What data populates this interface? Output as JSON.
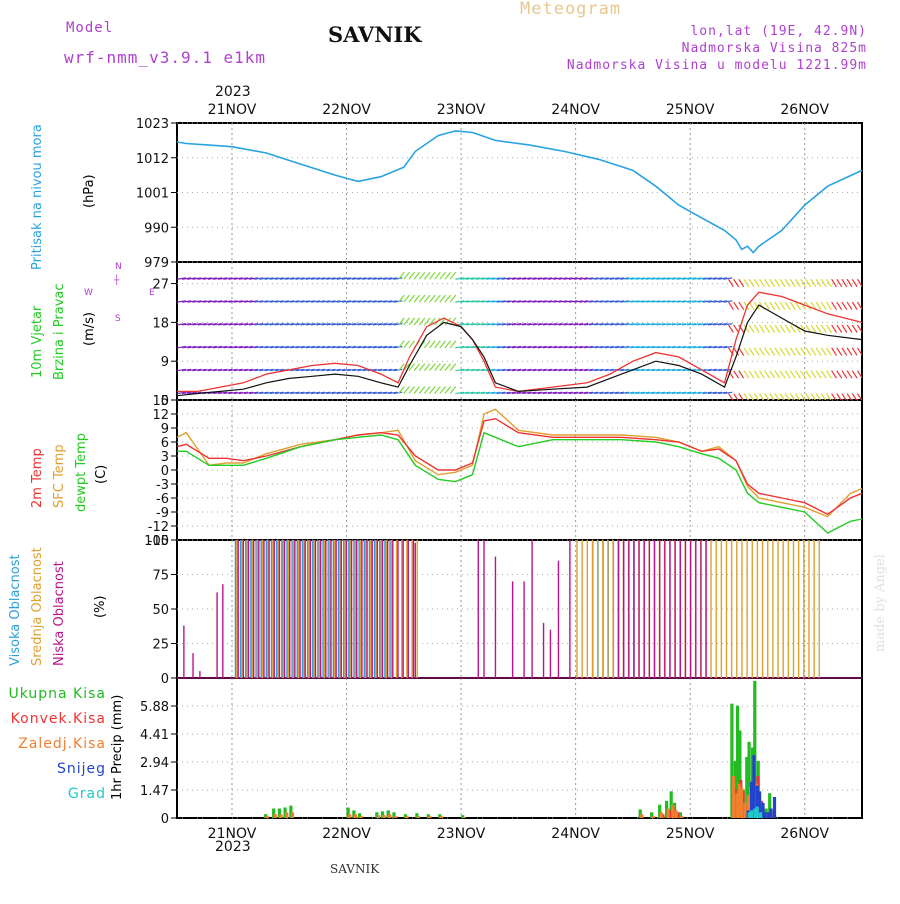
{
  "header": {
    "model_label": "Model",
    "model_name": "wrf-nmm_v3.9.1 e1km",
    "station": "SAVNIK",
    "meteogram_label": "Meteogram",
    "lonlat": "lon,lat (19E, 42.9N)",
    "altitude": "Nadmorska Visina 825m",
    "model_altitude": "Nadmorska Visina u modelu 1221.99m",
    "year_top": "2023",
    "year_bottom": "2023",
    "footer_station": "SAVNIK",
    "watermark": "made by Angel"
  },
  "colors": {
    "pressure": "#29a3e0",
    "temp2m": "#ee3333",
    "sfc": "#e0a030",
    "dew": "#22cc22",
    "high_cloud": "#2aa0d8",
    "mid_cloud": "#e0a030",
    "low_cloud": "#bb1488",
    "total": "#22bb22",
    "conv": "#ee3333",
    "strat": "#f08030",
    "snow": "#2244cc",
    "hail": "#20c8c8"
  },
  "chart_data": [
    {
      "type": "line",
      "panel": "pressure",
      "ylabel": "(hPa)",
      "side_labels": [
        "Pritisak na nivou mora"
      ],
      "ylim": [
        979,
        1023
      ],
      "yticks": [
        "1023",
        "1012",
        "1001",
        "990",
        "979"
      ],
      "x_days": [
        "21NOV",
        "22NOV",
        "23NOV",
        "24NOV",
        "25NOV",
        "26NOV"
      ],
      "x": [
        20.52,
        20.6,
        20.8,
        21.0,
        21.3,
        21.6,
        21.9,
        22.1,
        22.3,
        22.4,
        22.5,
        22.6,
        22.8,
        22.95,
        23.1,
        23.3,
        23.6,
        23.9,
        24.2,
        24.5,
        24.7,
        24.9,
        25.1,
        25.3,
        25.4,
        25.45,
        25.5,
        25.55,
        25.6,
        25.8,
        26.0,
        26.2,
        26.5
      ],
      "series": [
        {
          "values": [
            1017,
            1016.5,
            1016,
            1015.5,
            1013.5,
            1010,
            1006.5,
            1004.5,
            1006,
            1007.5,
            1009,
            1014,
            1019,
            1020.5,
            1020,
            1017.5,
            1016,
            1014,
            1011.5,
            1008,
            1003,
            997,
            993,
            989,
            986,
            983,
            984,
            982,
            984,
            989,
            997,
            1003,
            1008
          ]
        }
      ]
    },
    {
      "type": "line",
      "panel": "wind",
      "ylabel": "(m/s)",
      "side_labels": [
        "10m Vjetar",
        "Brzina i Pravac"
      ],
      "compass": [
        "N",
        "E",
        "S",
        "W"
      ],
      "ylim": [
        0,
        32
      ],
      "yticks": [
        "27",
        "18",
        "9",
        "0"
      ],
      "x": [
        20.52,
        20.7,
        20.9,
        21.1,
        21.3,
        21.5,
        21.7,
        21.9,
        22.1,
        22.3,
        22.45,
        22.55,
        22.7,
        22.85,
        23.0,
        23.1,
        23.2,
        23.3,
        23.5,
        23.8,
        24.1,
        24.3,
        24.5,
        24.7,
        24.9,
        25.1,
        25.3,
        25.4,
        25.5,
        25.6,
        25.8,
        26.0,
        26.2,
        26.5
      ],
      "series": [
        {
          "name": "speed",
          "values": [
            1,
            1.5,
            2,
            2.5,
            4,
            5,
            5.5,
            6,
            5.5,
            4,
            3,
            8,
            15,
            18,
            17,
            14,
            10,
            4,
            2,
            2.5,
            3,
            5,
            7,
            9,
            8,
            6,
            3,
            10,
            18,
            22,
            19,
            16,
            15,
            14
          ]
        },
        {
          "name": "gust",
          "values": [
            2,
            2,
            3,
            4,
            6,
            7,
            8,
            8.5,
            8,
            6,
            4,
            10,
            17,
            19,
            17,
            14,
            9,
            3,
            2,
            3,
            4,
            6,
            9,
            11,
            10,
            7,
            4,
            14,
            22,
            25,
            24,
            22,
            20,
            18
          ]
        }
      ]
    },
    {
      "type": "line",
      "panel": "temperature",
      "ylabel": "(C)",
      "side_labels": [
        "2m Temp",
        "SFC Temp",
        "dewpt Temp"
      ],
      "ylim": [
        -15,
        15
      ],
      "yticks": [
        "15",
        "12",
        "9",
        "6",
        "3",
        "0",
        "-3",
        "-6",
        "-9",
        "-12",
        "-15"
      ],
      "x": [
        20.52,
        20.6,
        20.8,
        20.95,
        21.1,
        21.3,
        21.6,
        21.9,
        22.1,
        22.3,
        22.45,
        22.6,
        22.8,
        22.95,
        23.1,
        23.2,
        23.3,
        23.5,
        23.8,
        24.1,
        24.4,
        24.7,
        24.9,
        25.1,
        25.25,
        25.4,
        25.5,
        25.6,
        25.8,
        26.0,
        26.2,
        26.4,
        26.5
      ],
      "series": [
        {
          "name": "2m Temp",
          "values": [
            5,
            5.5,
            2.5,
            2.5,
            2,
            3,
            5,
            6.5,
            7.5,
            8,
            7.5,
            3,
            0,
            0,
            1.5,
            10.5,
            11,
            8,
            7,
            7,
            7,
            6.5,
            6,
            4,
            4.5,
            2,
            -3,
            -5,
            -6,
            -7,
            -9.5,
            -6,
            -5
          ]
        },
        {
          "name": "SFC Temp",
          "values": [
            7,
            8,
            1,
            1.5,
            1.5,
            3.5,
            5.5,
            6.5,
            7.5,
            8,
            8.5,
            2,
            -1,
            -0.5,
            1,
            12,
            13,
            8.5,
            7.5,
            7.5,
            7.5,
            7,
            6,
            4,
            5,
            2,
            -3.5,
            -6,
            -7,
            -8,
            -10,
            -5,
            -4
          ]
        },
        {
          "name": "dewpt Temp",
          "values": [
            4,
            4,
            1,
            1,
            1,
            2.5,
            5,
            6.5,
            7,
            7.5,
            6.5,
            1,
            -2,
            -2.5,
            -1,
            8,
            7,
            5,
            6.5,
            6.5,
            6.5,
            6,
            5,
            3.5,
            2.5,
            0,
            -5,
            -7,
            -8,
            -9,
            -13.5,
            -11,
            -10.5
          ]
        }
      ]
    },
    {
      "type": "bar",
      "panel": "clouds",
      "ylabel": "(%)",
      "side_labels": [
        "Visoka Oblacnost",
        "Srednja Oblacnost",
        "Niska Oblacnost"
      ],
      "ylim": [
        0,
        100
      ],
      "yticks": [
        "100",
        "75",
        "50",
        "25",
        "0"
      ],
      "series": [
        {
          "name": "Visoka Oblacnost",
          "ranges": [
            [
              21.03,
              22.42,
              100
            ],
            [
              24.15,
              24.55,
              100
            ]
          ]
        },
        {
          "name": "Srednja Oblacnost",
          "ranges": [
            [
              21.03,
              22.65,
              100
            ],
            [
              24.0,
              26.15,
              100
            ]
          ]
        },
        {
          "name": "Niska Oblacnost",
          "ranges": [
            [
              21.03,
              22.6,
              100
            ],
            [
              24.35,
              25.15,
              100
            ]
          ]
        },
        {
          "name": "Niska Oblacnost sparse",
          "x": [
            20.58,
            20.66,
            20.72,
            20.87,
            20.92,
            22.6,
            23.15,
            23.2,
            23.3,
            23.45,
            23.55,
            23.62,
            23.72,
            23.78,
            23.85,
            23.95
          ],
          "values": [
            38,
            18,
            5,
            62,
            68,
            98,
            100,
            100,
            88,
            70,
            70,
            100,
            40,
            35,
            85,
            100
          ]
        }
      ]
    },
    {
      "type": "bar",
      "panel": "precipitation",
      "ylabel": "1hr Precip (mm)",
      "side_labels": [
        "Ukupna Kisa",
        "Konvek.Kisa",
        "Zaledj.Kisa",
        "Snijeg",
        "Grad"
      ],
      "ylim": [
        0,
        7.35
      ],
      "yticks": [
        "5.88",
        "4.41",
        "2.94",
        "1.47",
        "0"
      ],
      "x": [
        21.28,
        21.35,
        21.4,
        21.45,
        21.5,
        22.0,
        22.05,
        22.1,
        22.25,
        22.3,
        22.35,
        22.4,
        22.5,
        22.6,
        22.7,
        22.8,
        23.0,
        24.55,
        24.65,
        24.72,
        24.78,
        24.82,
        24.85,
        24.9,
        25.35,
        25.38,
        25.4,
        25.42,
        25.45,
        25.48,
        25.5,
        25.53,
        25.55,
        25.58,
        25.6,
        25.63,
        25.65,
        25.68
      ],
      "series": [
        {
          "name": "Ukupna Kisa",
          "values": [
            0.2,
            0.5,
            0.5,
            0.55,
            0.65,
            0.55,
            0.4,
            0.25,
            0.3,
            0.35,
            0.4,
            0.3,
            0.2,
            0.25,
            0.2,
            0.2,
            0.15,
            0.45,
            0.3,
            0.7,
            0.9,
            1.4,
            0.8,
            0.3,
            6.0,
            3.0,
            5.9,
            4.6,
            1.5,
            3.2,
            4.0,
            3.7,
            7.2,
            3.0,
            0.8,
            0.4,
            0.5,
            1.3
          ]
        },
        {
          "name": "Konvek.Kisa",
          "values": [
            0,
            0,
            0,
            0,
            0,
            0,
            0,
            0,
            0,
            0,
            0,
            0,
            0,
            0,
            0,
            0,
            0,
            0,
            0,
            0.2,
            0.4,
            0.5,
            0.3,
            0,
            1.5,
            1.0,
            2.0,
            1.4,
            0.6,
            1.2,
            1.5,
            1.3,
            2.2,
            0.9,
            0.2,
            0,
            0,
            0
          ]
        },
        {
          "name": "Zaledj.Kisa",
          "values": [
            0.1,
            0.2,
            0.2,
            0.3,
            0.3,
            0.2,
            0.2,
            0.1,
            0.15,
            0.15,
            0.2,
            0.1,
            0.1,
            0.1,
            0.1,
            0.1,
            0.05,
            0.2,
            0.1,
            0.3,
            0.5,
            0.7,
            0.4,
            0.1,
            2.2,
            1.3,
            1.8,
            1.6,
            0.8,
            1.2,
            1.6,
            1.4,
            1.8,
            1.0,
            0.3,
            0.2,
            0.2,
            0.4
          ]
        },
        {
          "name": "Snijeg",
          "values": [
            0,
            0,
            0,
            0,
            0,
            0,
            0,
            0,
            0,
            0,
            0,
            0,
            0,
            0,
            0,
            0,
            0,
            0,
            0,
            0,
            0,
            0,
            0,
            0,
            0,
            0,
            0,
            0,
            0.4,
            1.9,
            3.3,
            1.7,
            1.4,
            0.8,
            0.3,
            0.3,
            0.5,
            1.1
          ]
        },
        {
          "name": "Grad",
          "values": [
            0,
            0,
            0,
            0,
            0,
            0,
            0,
            0,
            0,
            0,
            0,
            0,
            0,
            0,
            0,
            0,
            0,
            0,
            0,
            0,
            0,
            0,
            0,
            0,
            0,
            0,
            0,
            0,
            0,
            0.3,
            0.4,
            0.5,
            0.6,
            0.3,
            0,
            0,
            0,
            0
          ]
        }
      ]
    }
  ]
}
